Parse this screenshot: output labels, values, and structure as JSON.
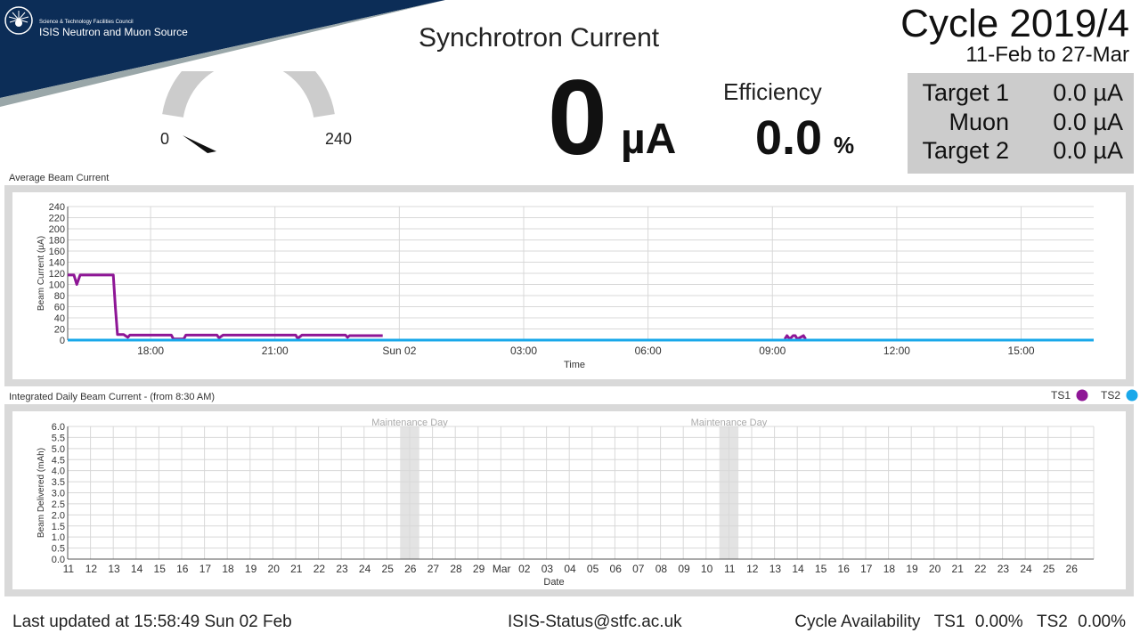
{
  "header": {
    "org_line1": "Science & Technology Facilities Council",
    "org_line2": "ISIS Neutron and Muon Source",
    "title": "Synchrotron Current",
    "current_value": "0",
    "current_unit": "µA",
    "efficiency_label": "Efficiency",
    "efficiency_value": "0.0",
    "efficiency_unit": "%",
    "cycle_title": "Cycle 2019/4",
    "cycle_dates": "11-Feb to 27-Mar",
    "colors": {
      "banner": "#0c2d57",
      "ts1": "#8e1696",
      "ts2": "#19a8ea"
    }
  },
  "gauge": {
    "min_label": "0",
    "max_label": "240",
    "value": 0,
    "min": 0,
    "max": 240
  },
  "targets": [
    {
      "name": "Target 1",
      "value": "0.0 µA"
    },
    {
      "name": "Muon",
      "value": "0.0 µA"
    },
    {
      "name": "Target 2",
      "value": "0.0 µA"
    }
  ],
  "legend": {
    "ts1": "TS1",
    "ts2": "TS2"
  },
  "footer": {
    "updated": "Last updated at 15:58:49 Sun 02 Feb",
    "email": "ISIS-Status@stfc.ac.uk",
    "availability_label": "Cycle Availability",
    "ts1": "TS1",
    "ts1_value": "0.00%",
    "ts2": "TS2",
    "ts2_value": "0.00%"
  },
  "chart_data": [
    {
      "type": "line",
      "title": "Average Beam Current",
      "xlabel": "Time",
      "ylabel": "Beam Current (µA)",
      "ylim": [
        0,
        240
      ],
      "yticks": [
        0,
        20,
        40,
        60,
        80,
        100,
        120,
        140,
        160,
        180,
        200,
        220,
        240
      ],
      "xlim": [
        16.0,
        40.75
      ],
      "xticks": [
        {
          "x": 18,
          "label": "18:00"
        },
        {
          "x": 21,
          "label": "21:00"
        },
        {
          "x": 24,
          "label": "Sun 02"
        },
        {
          "x": 27,
          "label": "03:00"
        },
        {
          "x": 30,
          "label": "06:00"
        },
        {
          "x": 33,
          "label": "09:00"
        },
        {
          "x": 36,
          "label": "12:00"
        },
        {
          "x": 39,
          "label": "15:00"
        }
      ],
      "grid": true,
      "series": [
        {
          "name": "TS1",
          "x": [
            16.0,
            16.15,
            16.22,
            16.3,
            17.1,
            17.15,
            17.2,
            17.35,
            17.45,
            17.5,
            18.5,
            18.55,
            18.8,
            18.85,
            19.6,
            19.65,
            19.75,
            21.5,
            21.55,
            21.65,
            22.7,
            22.75,
            22.8,
            23.6
          ],
          "y": [
            117,
            117,
            100,
            117,
            117,
            60,
            10,
            10,
            5,
            9,
            9,
            2,
            2,
            9,
            9,
            4,
            9,
            9,
            3,
            9,
            9,
            5,
            8,
            8
          ]
        },
        {
          "name": "TS1",
          "x": [
            33.3,
            33.35,
            33.42,
            33.5,
            33.55,
            33.6,
            33.75,
            33.8
          ],
          "y": [
            2,
            8,
            2,
            8,
            8,
            2,
            8,
            2
          ]
        },
        {
          "name": "TS2",
          "x": [
            16.0,
            40.75
          ],
          "y": [
            0,
            0
          ]
        }
      ]
    },
    {
      "type": "bar",
      "title": "Integrated Daily Beam Current - (from 8:30 AM)",
      "xlabel": "Date",
      "ylabel": "Beam Delivered (mAh)",
      "ylim": [
        0,
        6.0
      ],
      "yticks": [
        "0.0",
        "0.5",
        "1.0",
        "1.5",
        "2.0",
        "2.5",
        "3.0",
        "3.5",
        "4.0",
        "4.5",
        "5.0",
        "5.5",
        "6.0"
      ],
      "categories": [
        "11",
        "12",
        "13",
        "14",
        "15",
        "16",
        "17",
        "18",
        "19",
        "20",
        "21",
        "22",
        "23",
        "24",
        "25",
        "26",
        "27",
        "28",
        "29",
        "Mar",
        "02",
        "03",
        "04",
        "05",
        "06",
        "07",
        "08",
        "09",
        "10",
        "11",
        "12",
        "13",
        "14",
        "15",
        "16",
        "17",
        "18",
        "19",
        "20",
        "21",
        "22",
        "23",
        "24",
        "25",
        "26"
      ],
      "annotations": [
        {
          "category_index": 15,
          "label": "Maintenance Day"
        },
        {
          "category_index": 29,
          "label": "Maintenance Day"
        }
      ],
      "grid": true,
      "series": [
        {
          "name": "TS1",
          "values": [
            0,
            0,
            0,
            0,
            0,
            0,
            0,
            0,
            0,
            0,
            0,
            0,
            0,
            0,
            0,
            0,
            0,
            0,
            0,
            0,
            0,
            0,
            0,
            0,
            0,
            0,
            0,
            0,
            0,
            0,
            0,
            0,
            0,
            0,
            0,
            0,
            0,
            0,
            0,
            0,
            0,
            0,
            0,
            0,
            0
          ]
        },
        {
          "name": "TS2",
          "values": [
            0,
            0,
            0,
            0,
            0,
            0,
            0,
            0,
            0,
            0,
            0,
            0,
            0,
            0,
            0,
            0,
            0,
            0,
            0,
            0,
            0,
            0,
            0,
            0,
            0,
            0,
            0,
            0,
            0,
            0,
            0,
            0,
            0,
            0,
            0,
            0,
            0,
            0,
            0,
            0,
            0,
            0,
            0,
            0,
            0
          ]
        }
      ]
    }
  ]
}
